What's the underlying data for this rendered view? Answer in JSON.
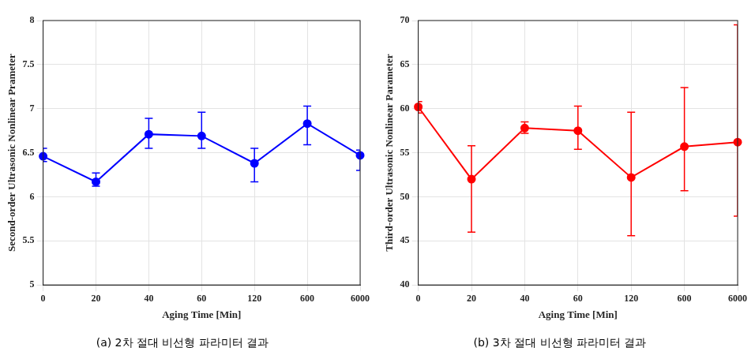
{
  "chart_data": [
    {
      "type": "line",
      "title": "(a) 2차 절대 비선형 파라미터 결과",
      "x_label": "Aging Time [Min]",
      "y_label": "Second-order Ultrasonic Nonlinear Prameter",
      "categories": [
        "0",
        "20",
        "40",
        "60",
        "120",
        "600",
        "6000"
      ],
      "series": [
        {
          "color": "#0000ff",
          "marker": "circle",
          "line_style": "solid",
          "values": [
            6.46,
            6.17,
            6.71,
            6.69,
            6.38,
            6.83,
            6.47
          ],
          "lower": [
            6.4,
            6.12,
            6.55,
            6.55,
            6.17,
            6.59,
            6.3
          ],
          "upper": [
            6.55,
            6.27,
            6.89,
            6.96,
            6.55,
            7.03,
            6.53
          ]
        }
      ],
      "ylim": [
        5,
        8
      ],
      "yticks": [
        5,
        5.5,
        6,
        6.5,
        7,
        7.5,
        8
      ],
      "grid": true
    },
    {
      "type": "line",
      "title": "(b) 3차 절대 비선형 파라미터 결과",
      "x_label": "Aging Time [Min]",
      "y_label": "Third-order Ultrasonic Nonlinear Parameter",
      "categories": [
        "0",
        "20",
        "40",
        "60",
        "120",
        "600",
        "6000"
      ],
      "series": [
        {
          "color": "#ff0000",
          "marker": "circle",
          "line_style": "solid",
          "values": [
            60.2,
            52.0,
            57.8,
            57.5,
            52.2,
            55.7,
            56.2
          ],
          "lower": [
            59.5,
            46.0,
            57.2,
            55.4,
            45.6,
            50.7,
            47.8
          ],
          "upper": [
            60.8,
            55.8,
            58.5,
            60.3,
            59.6,
            62.4,
            69.5
          ]
        }
      ],
      "ylim": [
        40,
        70
      ],
      "yticks": [
        40,
        45,
        50,
        55,
        60,
        65,
        70
      ],
      "grid": true
    }
  ]
}
